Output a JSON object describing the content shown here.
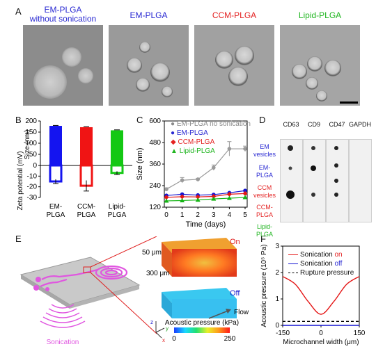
{
  "panels": {
    "a": "A",
    "b": "B",
    "c": "C",
    "d": "D",
    "e": "E",
    "f": "F"
  },
  "panel_a": {
    "titles": [
      "EM-PLGA without sonication",
      "EM-PLGA",
      "CCM-PLGA",
      "Lipid-PLGA"
    ],
    "title_lines": [
      [
        "EM-PLGA",
        "without sonication"
      ],
      [
        "EM-PLGA"
      ],
      [
        "CCM-PLGA"
      ],
      [
        "Lipid-PLGA"
      ]
    ]
  },
  "chart_data": [
    {
      "id": "B",
      "type": "bar",
      "categories": [
        "EM-PLGA",
        "CCM-PLGA",
        "Lipid-PLGA"
      ],
      "category_lines": [
        [
          "EM-",
          "PLGA"
        ],
        [
          "CCM-",
          "PLGA"
        ],
        [
          "Lipid-",
          "PLGA"
        ]
      ],
      "series": [
        {
          "name": "Size (nm)",
          "values": [
            178,
            172,
            158
          ],
          "errors": [
            2,
            3,
            2
          ]
        },
        {
          "name": "Zeta potential (mV)",
          "values": [
            -15,
            -19,
            -7
          ],
          "errors": [
            2,
            5,
            1.5
          ]
        }
      ],
      "top_ylim": [
        0,
        200
      ],
      "top_ticks": [
        0,
        50,
        100,
        150,
        200
      ],
      "bottom_ylim": [
        -30,
        0
      ],
      "bottom_ticks": [
        0,
        -10,
        -20,
        -30
      ],
      "ylabel_top": "Size (nm)",
      "ylabel_bottom": "Zeta potential (mV)",
      "colors": [
        "#1414f0",
        "#f01414",
        "#14c814"
      ]
    },
    {
      "id": "C",
      "type": "line",
      "x": [
        0,
        1,
        2,
        3,
        4,
        5
      ],
      "series": [
        {
          "name": "EM-PLGA no sonication",
          "values": [
            220,
            270,
            275,
            340,
            445,
            445
          ],
          "errors": [
            8,
            15,
            5,
            15,
            40,
            15
          ],
          "color": "#9a9a9a",
          "marker": "circle"
        },
        {
          "name": "EM-PLGA",
          "values": [
            185,
            192,
            187,
            190,
            200,
            212
          ],
          "color": "#1414d2",
          "marker": "circle"
        },
        {
          "name": "CCM-PLGA",
          "values": [
            175,
            178,
            177,
            180,
            192,
            196
          ],
          "color": "#e41414",
          "marker": "diamond"
        },
        {
          "name": "Lipid-PLGA",
          "values": [
            155,
            157,
            160,
            166,
            170,
            174
          ],
          "color": "#14b414",
          "marker": "triangle"
        }
      ],
      "xlabel": "Time (days)",
      "ylabel": "Size (nm)",
      "ylim": [
        120,
        600
      ],
      "yticks": [
        120,
        240,
        360,
        480,
        600
      ],
      "xticks": [
        0,
        1,
        2,
        3,
        4,
        5
      ]
    },
    {
      "id": "F",
      "type": "line",
      "x": [
        -150,
        -100,
        -50,
        0,
        50,
        100,
        150
      ],
      "series": [
        {
          "name": "Sonication on",
          "values": [
            1.85,
            1.55,
            0.9,
            0.42,
            0.9,
            1.55,
            1.85
          ],
          "color": "#e41414"
        },
        {
          "name": "Sonication off",
          "values": [
            0,
            0,
            0,
            0,
            0,
            0,
            0
          ],
          "color": "#1414d2"
        },
        {
          "name": "Rupture pressure",
          "values": [
            0.15,
            0.15,
            0.15,
            0.15,
            0.15,
            0.15,
            0.15
          ],
          "color": "#000000",
          "dashed": true
        }
      ],
      "xlabel": "Microchannel width (μm)",
      "ylabel": "Acoustic pressure (10⁵ Pa)",
      "ylim": [
        0,
        3
      ],
      "yticks": [
        0,
        1,
        2,
        3
      ],
      "xticks": [
        -150,
        0,
        150
      ]
    }
  ],
  "panel_c_legend": [
    {
      "label": "EM-PLGA no sonication"
    },
    {
      "label": "EM-PLGA"
    },
    {
      "label": "CCM-PLGA"
    },
    {
      "label": "Lipid-PLGA"
    }
  ],
  "panel_d": {
    "markers": [
      "CD63",
      "CD9",
      "CD47",
      "GAPDH"
    ],
    "samples": [
      [
        "EM",
        "vesicles"
      ],
      [
        "EM-",
        "PLGA"
      ],
      [
        "CCM",
        "vesicles"
      ],
      [
        "CCM-",
        "PLGA"
      ],
      [
        "Lipid-",
        "PLGA"
      ]
    ]
  },
  "panel_e": {
    "sonication_label": "Sonication",
    "dim_height": "50 μm",
    "dim_length": "300 μm",
    "on_label": "On",
    "off_label": "Off",
    "flow_label": "Flow",
    "colorbar_title": "Acoustic pressure (kPa)",
    "colorbar_min": "0",
    "colorbar_max": "250",
    "axes": {
      "z": "z",
      "y": "y",
      "x": "x"
    }
  },
  "panel_f_legend": [
    {
      "pre": "Sonication ",
      "em": "on"
    },
    {
      "pre": "Sonication ",
      "em": "off"
    },
    {
      "pre": "Rupture pressure",
      "em": ""
    }
  ]
}
